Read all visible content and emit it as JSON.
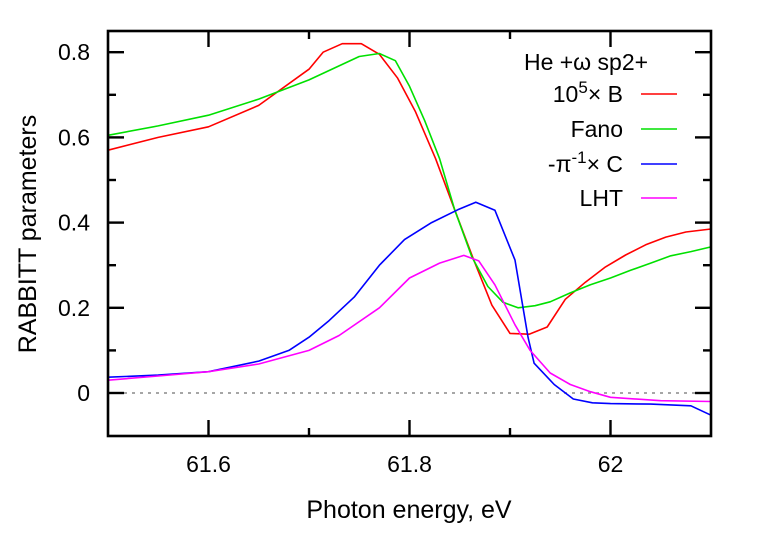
{
  "chart_data": {
    "type": "line",
    "title": "",
    "xlabel": "Photon energy, eV",
    "ylabel": "RABBITT parameters",
    "xlim": [
      61.5,
      62.1
    ],
    "ylim": [
      -0.1,
      0.85
    ],
    "xticks": [
      61.6,
      61.8,
      62
    ],
    "xtick_labels": [
      "61.6",
      "61.8",
      "62"
    ],
    "xminor": [
      61.7,
      61.9
    ],
    "yticks": [
      0,
      0.2,
      0.4,
      0.6,
      0.8
    ],
    "ytick_labels": [
      "0",
      "0.2",
      "0.4",
      "0.6",
      "0.8"
    ],
    "yminor": [
      0.1,
      0.3,
      0.5,
      0.7
    ],
    "grid": false,
    "zero_line": {
      "y": 0,
      "style": "dotted",
      "color": "#888888"
    },
    "legend": {
      "title": "He +ω sp2+",
      "position": "upper right",
      "entries": [
        {
          "label_html": "10<sup>5</sup>× B",
          "label": "10^5× B"
        },
        {
          "label_html": "Fano",
          "label": "Fano"
        },
        {
          "label_html": "-π<sup>-1</sup>× C",
          "label": "-π^-1× C"
        },
        {
          "label_html": "LHT",
          "label": "LHT"
        }
      ]
    },
    "series": [
      {
        "name": "10^5× B",
        "color": "#ff0000",
        "x": [
          61.5,
          61.55,
          61.6,
          61.65,
          61.7,
          61.714,
          61.733,
          61.752,
          61.77,
          61.788,
          61.806,
          61.826,
          61.845,
          61.864,
          61.882,
          61.9,
          61.919,
          61.937,
          61.955,
          61.975,
          61.995,
          62.015,
          62.035,
          62.055,
          62.075,
          62.1
        ],
        "values": [
          0.57,
          0.6,
          0.625,
          0.675,
          0.76,
          0.8,
          0.82,
          0.82,
          0.795,
          0.74,
          0.66,
          0.55,
          0.43,
          0.312,
          0.206,
          0.14,
          0.138,
          0.155,
          0.22,
          0.26,
          0.296,
          0.324,
          0.348,
          0.366,
          0.378,
          0.385
        ]
      },
      {
        "name": "Fano",
        "color": "#00e000",
        "x": [
          61.5,
          61.55,
          61.6,
          61.65,
          61.7,
          61.75,
          61.77,
          61.786,
          61.8,
          61.815,
          61.83,
          61.845,
          61.862,
          61.878,
          61.893,
          61.908,
          61.925,
          61.94,
          61.96,
          61.98,
          62.0,
          62.02,
          62.04,
          62.06,
          62.08,
          62.1
        ],
        "values": [
          0.605,
          0.627,
          0.652,
          0.69,
          0.735,
          0.79,
          0.797,
          0.78,
          0.72,
          0.64,
          0.55,
          0.43,
          0.32,
          0.25,
          0.213,
          0.2,
          0.205,
          0.214,
          0.235,
          0.254,
          0.27,
          0.288,
          0.305,
          0.322,
          0.332,
          0.343
        ]
      },
      {
        "name": "-π^-1× C",
        "color": "#0000ff",
        "x": [
          61.5,
          61.55,
          61.6,
          61.65,
          61.68,
          61.7,
          61.72,
          61.745,
          61.77,
          61.795,
          61.822,
          61.848,
          61.866,
          61.885,
          61.905,
          61.918,
          61.924,
          61.944,
          61.963,
          61.982,
          62.0,
          62.04,
          62.08,
          62.1
        ],
        "values": [
          0.037,
          0.042,
          0.05,
          0.075,
          0.1,
          0.131,
          0.17,
          0.225,
          0.3,
          0.36,
          0.4,
          0.43,
          0.448,
          0.429,
          0.312,
          0.13,
          0.07,
          0.02,
          -0.014,
          -0.023,
          -0.025,
          -0.026,
          -0.03,
          -0.052
        ]
      },
      {
        "name": "LHT",
        "color": "#ff00ff",
        "x": [
          61.5,
          61.55,
          61.6,
          61.65,
          61.7,
          61.73,
          61.77,
          61.8,
          61.83,
          61.854,
          61.869,
          61.885,
          61.905,
          61.92,
          61.94,
          61.96,
          61.98,
          62.0,
          62.05,
          62.1
        ],
        "values": [
          0.03,
          0.04,
          0.05,
          0.068,
          0.1,
          0.135,
          0.2,
          0.27,
          0.305,
          0.323,
          0.31,
          0.254,
          0.16,
          0.1,
          0.047,
          0.02,
          0.003,
          -0.01,
          -0.018,
          -0.02
        ]
      }
    ]
  }
}
